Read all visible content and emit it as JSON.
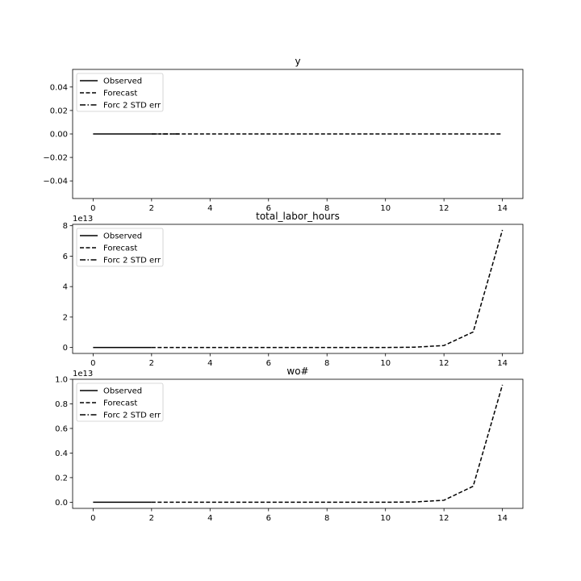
{
  "chart_data": [
    {
      "type": "line",
      "title": "y",
      "offset_text": "",
      "xlim": [
        -0.7,
        14.7
      ],
      "ylim": [
        -0.055,
        0.055
      ],
      "xticks": [
        0,
        2,
        4,
        6,
        8,
        10,
        12,
        14
      ],
      "xtick_labels": [
        "0",
        "2",
        "4",
        "6",
        "8",
        "10",
        "12",
        "14"
      ],
      "yticks": [
        -0.04,
        -0.02,
        0.0,
        0.02,
        0.04
      ],
      "ytick_labels": [
        "−0.04",
        "−0.02",
        "0.00",
        "0.02",
        "0.04"
      ],
      "legend": [
        "Observed",
        "Forecast",
        "Forc 2 STD err"
      ],
      "legend_position": "upper-left",
      "series": [
        {
          "name": "Observed",
          "style": "solid",
          "x": [
            0,
            1,
            2
          ],
          "y": [
            0,
            0,
            0
          ]
        },
        {
          "name": "Forecast",
          "style": "dashed",
          "x": [
            2,
            3,
            4,
            5,
            6,
            7,
            8,
            9,
            10,
            11,
            12,
            13,
            14
          ],
          "y": [
            0,
            0,
            0,
            0,
            0,
            0,
            0,
            0,
            0,
            0,
            0,
            0,
            0
          ]
        },
        {
          "name": "Forc 2 STD err",
          "style": "dashdot",
          "x": [
            2,
            3
          ],
          "y": [
            0,
            0
          ]
        }
      ]
    },
    {
      "type": "line",
      "title": "total_labor_hours",
      "offset_text": "1e13",
      "xlim": [
        -0.7,
        14.7
      ],
      "ylim": [
        -0.39,
        8.09
      ],
      "xticks": [
        0,
        2,
        4,
        6,
        8,
        10,
        12,
        14
      ],
      "xtick_labels": [
        "0",
        "2",
        "4",
        "6",
        "8",
        "10",
        "12",
        "14"
      ],
      "yticks": [
        0,
        2,
        4,
        6,
        8
      ],
      "ytick_labels": [
        "0",
        "2",
        "4",
        "6",
        "8"
      ],
      "legend": [
        "Observed",
        "Forecast",
        "Forc 2 STD err"
      ],
      "legend_position": "upper-left",
      "series": [
        {
          "name": "Observed",
          "style": "solid",
          "x": [
            0,
            1,
            2
          ],
          "y": [
            0,
            0,
            0
          ]
        },
        {
          "name": "Forecast",
          "style": "dashed",
          "x": [
            2,
            3,
            4,
            5,
            6,
            7,
            8,
            9,
            10,
            11,
            12,
            13,
            14
          ],
          "y": [
            0,
            0,
            0,
            0,
            0,
            0,
            0,
            0,
            0,
            0.02,
            0.13,
            1.02,
            7.72
          ]
        }
      ]
    },
    {
      "type": "line",
      "title": "wo#",
      "offset_text": "1e13",
      "xlim": [
        -0.7,
        14.7
      ],
      "ylim": [
        -0.05,
        1.0
      ],
      "xticks": [
        0,
        2,
        4,
        6,
        8,
        10,
        12,
        14
      ],
      "xtick_labels": [
        "0",
        "2",
        "4",
        "6",
        "8",
        "10",
        "12",
        "14"
      ],
      "yticks": [
        0.0,
        0.2,
        0.4,
        0.6,
        0.8,
        1.0
      ],
      "ytick_labels": [
        "0.0",
        "0.2",
        "0.4",
        "0.6",
        "0.8",
        "1.0"
      ],
      "legend": [
        "Observed",
        "Forecast",
        "Forc 2 STD err"
      ],
      "legend_position": "upper-left",
      "series": [
        {
          "name": "Observed",
          "style": "solid",
          "x": [
            0,
            1,
            2
          ],
          "y": [
            0,
            0,
            0
          ]
        },
        {
          "name": "Forecast",
          "style": "dashed",
          "x": [
            2,
            3,
            4,
            5,
            6,
            7,
            8,
            9,
            10,
            11,
            12,
            13,
            14
          ],
          "y": [
            0,
            0,
            0,
            0,
            0,
            0,
            0,
            0,
            0,
            0.002,
            0.016,
            0.13,
            0.955
          ]
        }
      ]
    }
  ]
}
